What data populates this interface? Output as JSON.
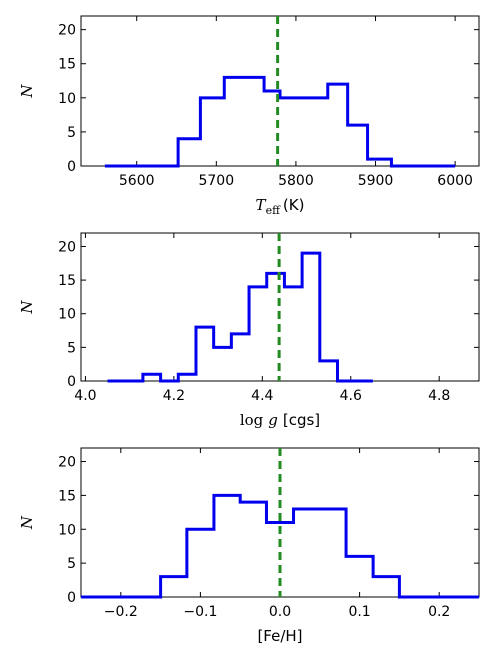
{
  "chart_data": [
    {
      "type": "histogram-step",
      "xlabel_main": "T",
      "xlabel_sub": "eff",
      "xlabel_unit": "(K)",
      "ylabel": "N",
      "xlim": [
        5530,
        6030
      ],
      "ylim": [
        0,
        22
      ],
      "xticks": [
        5600,
        5700,
        5800,
        5900,
        6000
      ],
      "yticks": [
        0,
        5,
        10,
        15,
        20
      ],
      "series": [
        {
          "edges": [
            5560,
            5600,
            5652,
            5680,
            5710,
            5760,
            5780,
            5800,
            5840,
            5865,
            5890,
            5920,
            6000
          ],
          "counts": [
            0,
            0,
            4,
            10,
            13,
            11,
            10,
            10,
            12,
            6,
            1,
            0
          ],
          "color": "#0000ee"
        }
      ],
      "reference_line": {
        "x": 5777,
        "color": "#228b22"
      }
    },
    {
      "type": "histogram-step",
      "xlabel_main": "log",
      "xlabel_var": "g",
      "xlabel_unit": "[cgs]",
      "ylabel": "N",
      "xlim": [
        3.99,
        4.89
      ],
      "ylim": [
        0,
        22
      ],
      "xticks": [
        4.0,
        4.2,
        4.4,
        4.6,
        4.8
      ],
      "yticks": [
        0,
        5,
        10,
        15,
        20
      ],
      "series": [
        {
          "edges": [
            4.05,
            4.13,
            4.17,
            4.21,
            4.25,
            4.29,
            4.33,
            4.37,
            4.41,
            4.45,
            4.49,
            4.53,
            4.57,
            4.65
          ],
          "counts": [
            0,
            1,
            0,
            1,
            8,
            5,
            7,
            14,
            16,
            14,
            19,
            3,
            0
          ],
          "color": "#0000ee"
        }
      ],
      "reference_line": {
        "x": 4.438,
        "color": "#228b22"
      }
    },
    {
      "type": "histogram-step",
      "xlabel": "[Fe/H]",
      "ylabel": "N",
      "xlim": [
        -0.25,
        0.25
      ],
      "ylim": [
        0,
        22
      ],
      "xticks": [
        -0.2,
        -0.1,
        0.0,
        0.1,
        0.2
      ],
      "xtick_labels": [
        "−0.2",
        "−0.1",
        "0.0",
        "0.1",
        "0.2"
      ],
      "yticks": [
        0,
        5,
        10,
        15,
        20
      ],
      "series": [
        {
          "edges": [
            -0.25,
            -0.15,
            -0.117,
            -0.083,
            -0.05,
            -0.017,
            0.017,
            0.083,
            0.117,
            0.15,
            0.25
          ],
          "counts": [
            0,
            3,
            10,
            15,
            14,
            11,
            13,
            6,
            3,
            0
          ],
          "color": "#0000ee"
        }
      ],
      "reference_line": {
        "x": 0.0,
        "color": "#228b22"
      }
    }
  ]
}
